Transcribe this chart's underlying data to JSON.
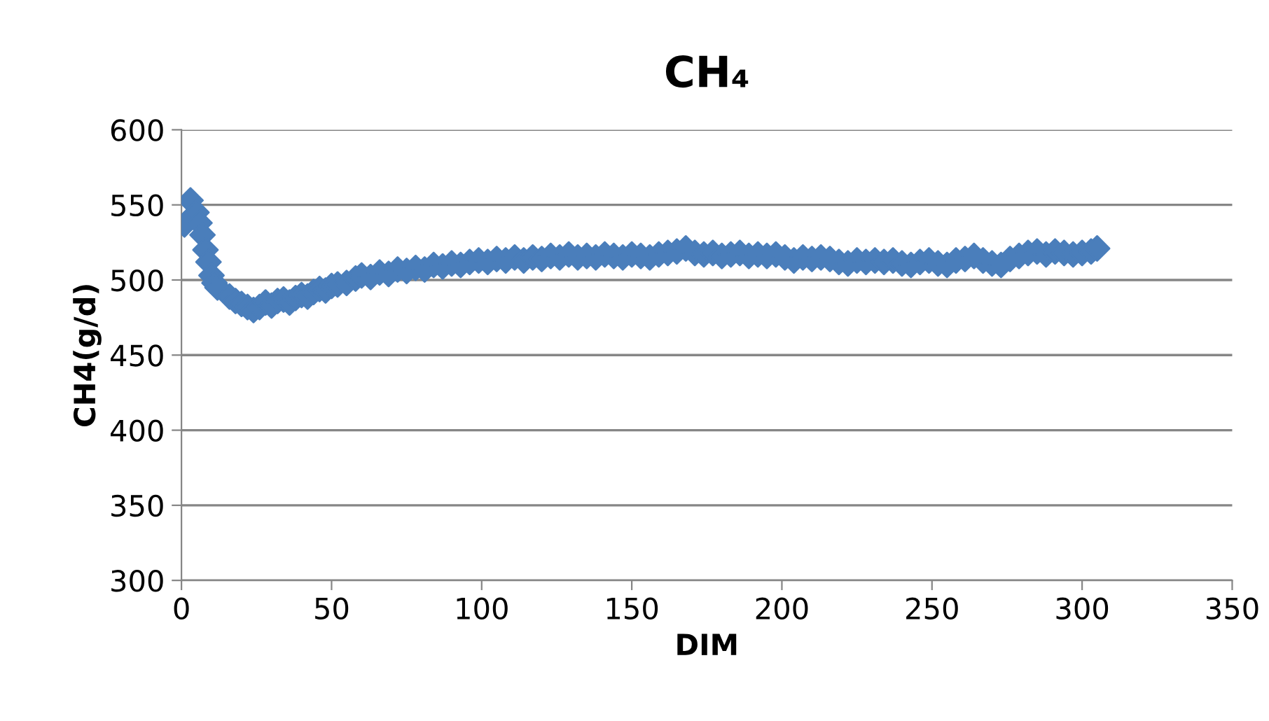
{
  "chart_data": {
    "type": "scatter",
    "title": "CH₄",
    "xlabel": "DIM",
    "ylabel": "CH4(g/d)",
    "marker": "diamond",
    "grid": "y",
    "legend": false,
    "xlim": [
      0,
      350
    ],
    "xticks": [
      0,
      50,
      100,
      150,
      200,
      250,
      300,
      350
    ],
    "ylim": [
      300,
      600
    ],
    "yticks": [
      300,
      350,
      400,
      450,
      500,
      550,
      600
    ],
    "series": [
      {
        "color": "#4a7ebb",
        "x": [
          1,
          3,
          5,
          6,
          7,
          8,
          9,
          10,
          11,
          12,
          16,
          18,
          20,
          22,
          24,
          26,
          28,
          30,
          32,
          34,
          36,
          38,
          40,
          42,
          44,
          46,
          48,
          50,
          52,
          55,
          58,
          60,
          63,
          66,
          69,
          72,
          75,
          78,
          81,
          84,
          87,
          90,
          93,
          96,
          99,
          102,
          105,
          108,
          111,
          114,
          117,
          120,
          123,
          126,
          129,
          132,
          135,
          138,
          141,
          144,
          147,
          150,
          153,
          156,
          159,
          162,
          165,
          168,
          171,
          174,
          177,
          180,
          183,
          186,
          189,
          192,
          195,
          198,
          201,
          204,
          207,
          210,
          213,
          216,
          219,
          222,
          225,
          228,
          231,
          234,
          237,
          240,
          243,
          246,
          249,
          252,
          255,
          258,
          261,
          264,
          267,
          270,
          273,
          276,
          279,
          282,
          285,
          288,
          291,
          294,
          297,
          300,
          303,
          305
        ],
        "values": [
          537,
          553,
          545,
          538,
          530,
          520,
          512,
          503,
          498,
          495,
          489,
          486,
          484,
          482,
          480,
          482,
          485,
          483,
          486,
          487,
          485,
          488,
          490,
          489,
          492,
          494,
          493,
          496,
          497,
          498,
          501,
          503,
          502,
          505,
          504,
          507,
          506,
          508,
          507,
          510,
          509,
          511,
          510,
          512,
          513,
          512,
          514,
          513,
          515,
          513,
          515,
          514,
          516,
          515,
          517,
          515,
          516,
          515,
          517,
          516,
          515,
          517,
          516,
          515,
          517,
          518,
          519,
          521,
          518,
          517,
          518,
          516,
          517,
          518,
          516,
          517,
          516,
          517,
          515,
          513,
          515,
          514,
          515,
          514,
          512,
          511,
          513,
          512,
          513,
          512,
          513,
          511,
          510,
          512,
          513,
          511,
          510,
          513,
          514,
          516,
          513,
          511,
          510,
          514,
          516,
          518,
          519,
          517,
          519,
          518,
          517,
          518,
          519,
          521
        ]
      }
    ]
  }
}
